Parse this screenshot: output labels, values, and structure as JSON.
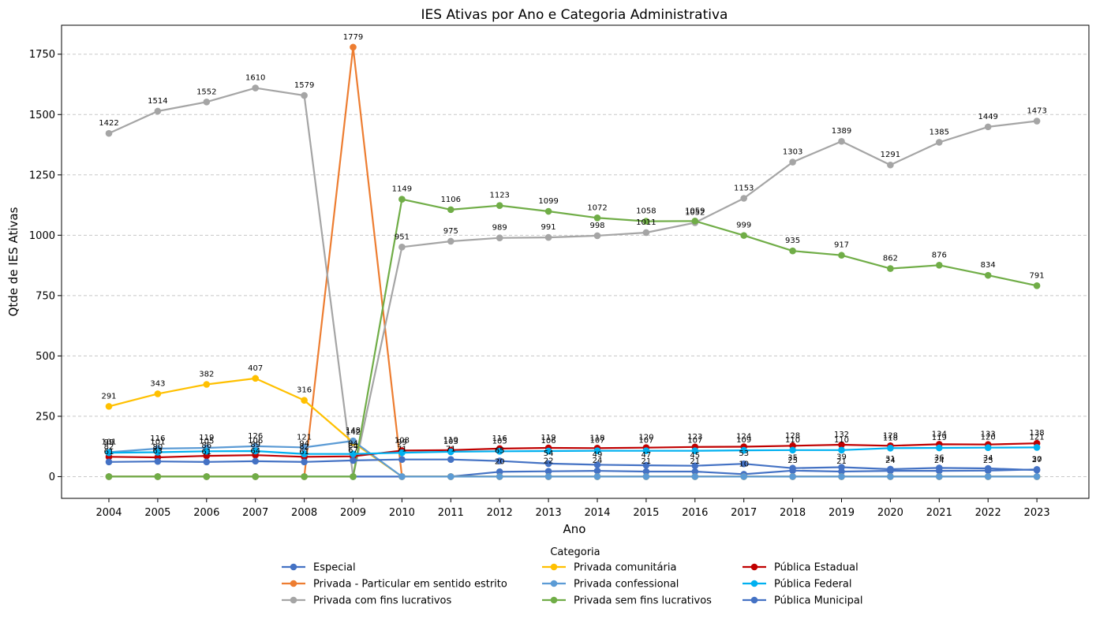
{
  "chart_data": {
    "type": "line",
    "title": "IES Ativas por Ano e Categoria Administrativa",
    "xlabel": "Ano",
    "ylabel": "Qtde de IES Ativas",
    "x": [
      "2004",
      "2005",
      "2006",
      "2007",
      "2008",
      "2009",
      "2010",
      "2011",
      "2012",
      "2013",
      "2014",
      "2015",
      "2016",
      "2017",
      "2018",
      "2019",
      "2020",
      "2021",
      "2022",
      "2023"
    ],
    "ylim": [
      -90,
      1870
    ],
    "yticks": [
      0,
      250,
      500,
      750,
      1000,
      1250,
      1500,
      1750
    ],
    "grid": "y-dashed",
    "legend_title": "Categoria",
    "legend_position": "bottom-center",
    "series": [
      {
        "name": "Especial",
        "color": "#4472C4",
        "values": [
          0,
          0,
          0,
          0,
          0,
          0,
          0,
          0,
          20,
          22,
          24,
          21,
          21,
          10,
          25,
          21,
          24,
          24,
          25,
          30
        ]
      },
      {
        "name": "Privada - Particular em sentido estrito",
        "color": "#ED7D31",
        "values": [
          0,
          0,
          0,
          0,
          0,
          1779,
          0,
          0,
          0,
          0,
          0,
          0,
          0,
          0,
          0,
          0,
          0,
          0,
          0,
          0
        ]
      },
      {
        "name": "Privada com fins lucrativos",
        "color": "#A5A5A5",
        "values": [
          1422,
          1514,
          1552,
          1610,
          1579,
          0,
          951,
          975,
          989,
          991,
          998,
          1011,
          1052,
          1153,
          1303,
          1389,
          1291,
          1385,
          1449,
          1473
        ]
      },
      {
        "name": "Privada comunitária",
        "color": "#FFC000",
        "values": [
          291,
          343,
          382,
          407,
          316,
          142,
          0,
          0,
          0,
          0,
          0,
          0,
          0,
          0,
          0,
          0,
          0,
          0,
          0,
          0
        ]
      },
      {
        "name": "Privada confessional",
        "color": "#5B9BD5",
        "values": [
          101,
          116,
          119,
          126,
          121,
          148,
          0,
          0,
          0,
          0,
          0,
          0,
          0,
          0,
          0,
          0,
          0,
          0,
          0,
          0
        ]
      },
      {
        "name": "Privada sem fins lucrativos",
        "color": "#70AD47",
        "values": [
          0,
          0,
          0,
          0,
          0,
          0,
          1149,
          1106,
          1123,
          1099,
          1072,
          1058,
          1059,
          999,
          935,
          917,
          862,
          876,
          834,
          791
        ]
      },
      {
        "name": "Pública Estadual",
        "color": "#C00000",
        "values": [
          82,
          80,
          86,
          89,
          82,
          84,
          108,
          110,
          116,
          119,
          118,
          120,
          123,
          124,
          128,
          132,
          128,
          134,
          133,
          138
        ]
      },
      {
        "name": "Pública Federal",
        "color": "#00B0F0",
        "values": [
          99,
          101,
          105,
          106,
          94,
          94,
          99,
          103,
          105,
          106,
          107,
          107,
          107,
          109,
          110,
          110,
          118,
          119,
          120,
          121
        ]
      },
      {
        "name": "Pública Municipal",
        "color": "#4472C4",
        "values": [
          61,
          63,
          61,
          64,
          61,
          67,
          71,
          71,
          65,
          54,
          49,
          47,
          45,
          53,
          35,
          39,
          31,
          36,
          34,
          27
        ]
      }
    ]
  }
}
